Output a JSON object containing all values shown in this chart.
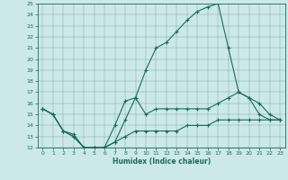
{
  "bg_color": "#cce8e8",
  "line_color": "#1a6b5e",
  "xlabel": "Humidex (Indice chaleur)",
  "xlim": [
    -0.5,
    23.5
  ],
  "ylim": [
    12,
    25
  ],
  "yticks": [
    12,
    13,
    14,
    15,
    16,
    17,
    18,
    19,
    20,
    21,
    22,
    23,
    24,
    25
  ],
  "xticks": [
    0,
    1,
    2,
    3,
    4,
    5,
    6,
    7,
    8,
    9,
    10,
    11,
    12,
    13,
    14,
    15,
    16,
    17,
    18,
    19,
    20,
    21,
    22,
    23
  ],
  "line1_x": [
    0,
    1,
    2,
    3,
    4,
    5,
    6,
    7,
    8,
    9,
    10,
    11,
    12,
    13,
    14,
    15,
    16,
    17,
    18,
    19,
    20,
    21,
    22,
    23
  ],
  "line1_y": [
    15.5,
    15.0,
    13.5,
    13.0,
    12.0,
    12.0,
    12.0,
    12.5,
    14.5,
    16.5,
    19.0,
    21.0,
    21.5,
    22.5,
    23.5,
    24.3,
    24.7,
    25.0,
    21.0,
    17.0,
    16.5,
    15.0,
    14.5,
    14.5
  ],
  "line2_x": [
    0,
    1,
    2,
    3,
    4,
    5,
    6,
    7,
    8,
    9,
    10,
    11,
    12,
    13,
    14,
    15,
    16,
    17,
    18,
    19,
    20,
    21,
    22,
    23
  ],
  "line2_y": [
    15.5,
    15.0,
    13.5,
    13.2,
    12.0,
    12.0,
    12.0,
    14.0,
    16.2,
    16.5,
    15.0,
    15.5,
    15.5,
    15.5,
    15.5,
    15.5,
    15.5,
    16.0,
    16.5,
    17.0,
    16.5,
    16.0,
    15.0,
    14.5
  ],
  "line3_x": [
    0,
    1,
    2,
    3,
    4,
    5,
    6,
    7,
    8,
    9,
    10,
    11,
    12,
    13,
    14,
    15,
    16,
    17,
    18,
    19,
    20,
    21,
    22,
    23
  ],
  "line3_y": [
    15.5,
    15.0,
    13.5,
    13.0,
    12.0,
    12.0,
    12.0,
    12.5,
    13.0,
    13.5,
    13.5,
    13.5,
    13.5,
    13.5,
    14.0,
    14.0,
    14.0,
    14.5,
    14.5,
    14.5,
    14.5,
    14.5,
    14.5,
    14.5
  ]
}
